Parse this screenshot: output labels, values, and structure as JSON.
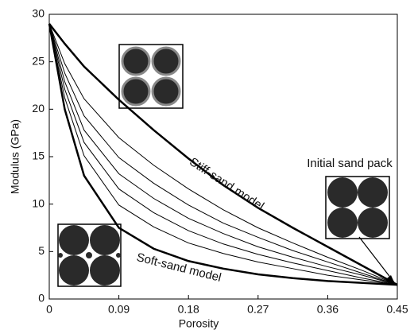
{
  "chart_data": {
    "type": "line",
    "x_label": "Porosity",
    "y_label": "Modulus (GPa)",
    "x": [
      0,
      0.02,
      0.045,
      0.09,
      0.135,
      0.18,
      0.225,
      0.27,
      0.315,
      0.36,
      0.405,
      0.45
    ],
    "series": [
      {
        "name": "Stiff-sand model",
        "color": "#000000",
        "line_width": 2.5,
        "values": [
          29,
          26.9,
          24.5,
          21,
          17.8,
          14.8,
          12,
          9.6,
          7.5,
          5.5,
          3.5,
          1.5
        ]
      },
      {
        "name": "Soft-sand model",
        "color": "#000000",
        "line_width": 2.5,
        "values": [
          29,
          20,
          13,
          7.5,
          5.3,
          4.0,
          3.2,
          2.6,
          2.2,
          1.9,
          1.7,
          1.5
        ]
      },
      {
        "color": "#000000",
        "line_width": 1,
        "values": [
          29,
          24.8,
          21.1,
          17,
          14.1,
          11.6,
          9.4,
          7.5,
          5.9,
          4.4,
          3.0,
          1.5
        ]
      },
      {
        "color": "#000000",
        "line_width": 1,
        "values": [
          29,
          23.8,
          19.3,
          14.9,
          12.2,
          9.9,
          8.0,
          6.5,
          5.1,
          3.9,
          2.7,
          1.5
        ]
      },
      {
        "color": "#000000",
        "line_width": 1,
        "values": [
          29,
          22.9,
          17.8,
          13.2,
          10.6,
          8.5,
          6.9,
          5.5,
          4.4,
          3.4,
          2.5,
          1.5
        ]
      },
      {
        "color": "#000000",
        "line_width": 1,
        "values": [
          29,
          22.1,
          16.5,
          11.6,
          9.1,
          7.2,
          5.8,
          4.7,
          3.8,
          3.0,
          2.2,
          1.5
        ]
      },
      {
        "color": "#000000",
        "line_width": 1,
        "values": [
          29,
          21.2,
          15.1,
          9.9,
          7.6,
          5.9,
          4.8,
          3.9,
          3.2,
          2.5,
          2.0,
          1.5
        ]
      }
    ],
    "annotations": [
      "Initial sand pack"
    ],
    "xlim": [
      0,
      0.45
    ],
    "xticks": [
      0,
      0.09,
      0.18,
      0.27,
      0.36,
      0.45
    ],
    "ylim": [
      0,
      30
    ],
    "yticks": [
      0,
      5,
      10,
      15,
      20,
      25,
      30
    ],
    "grid": false
  }
}
